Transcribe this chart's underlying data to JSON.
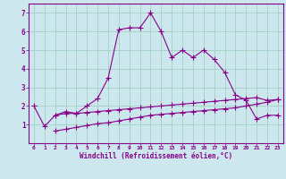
{
  "xlabel": "Windchill (Refroidissement éolien,°C)",
  "background_color": "#cce8ee",
  "line_color": "#880088",
  "grid_color": "#99ccbb",
  "x_values": [
    0,
    1,
    2,
    3,
    4,
    5,
    6,
    7,
    8,
    9,
    10,
    11,
    12,
    13,
    14,
    15,
    16,
    17,
    18,
    19,
    20,
    21,
    22,
    23
  ],
  "line1_y": [
    2.0,
    0.9,
    1.5,
    1.7,
    1.6,
    2.0,
    2.4,
    3.5,
    6.1,
    6.2,
    6.2,
    7.0,
    6.0,
    4.6,
    5.0,
    4.6,
    5.0,
    4.5,
    3.8,
    2.6,
    2.3,
    1.3,
    1.5,
    1.5
  ],
  "line2_y": [
    null,
    null,
    1.5,
    1.6,
    1.6,
    1.65,
    1.7,
    1.75,
    1.8,
    1.85,
    1.9,
    1.95,
    2.0,
    2.05,
    2.1,
    2.15,
    2.2,
    2.25,
    2.3,
    2.35,
    2.4,
    2.45,
    2.3,
    2.35
  ],
  "line3_y": [
    null,
    null,
    0.65,
    0.75,
    0.85,
    0.95,
    1.05,
    1.1,
    1.2,
    1.3,
    1.4,
    1.5,
    1.55,
    1.6,
    1.65,
    1.7,
    1.75,
    1.8,
    1.85,
    1.9,
    2.0,
    2.1,
    2.2,
    2.35
  ],
  "ylim": [
    0,
    7.5
  ],
  "xlim": [
    -0.5,
    23.5
  ],
  "yticks": [
    1,
    2,
    3,
    4,
    5,
    6,
    7
  ],
  "xticks": [
    0,
    1,
    2,
    3,
    4,
    5,
    6,
    7,
    8,
    9,
    10,
    11,
    12,
    13,
    14,
    15,
    16,
    17,
    18,
    19,
    20,
    21,
    22,
    23
  ],
  "marker": "+",
  "markersize": 4,
  "linewidth": 0.8
}
